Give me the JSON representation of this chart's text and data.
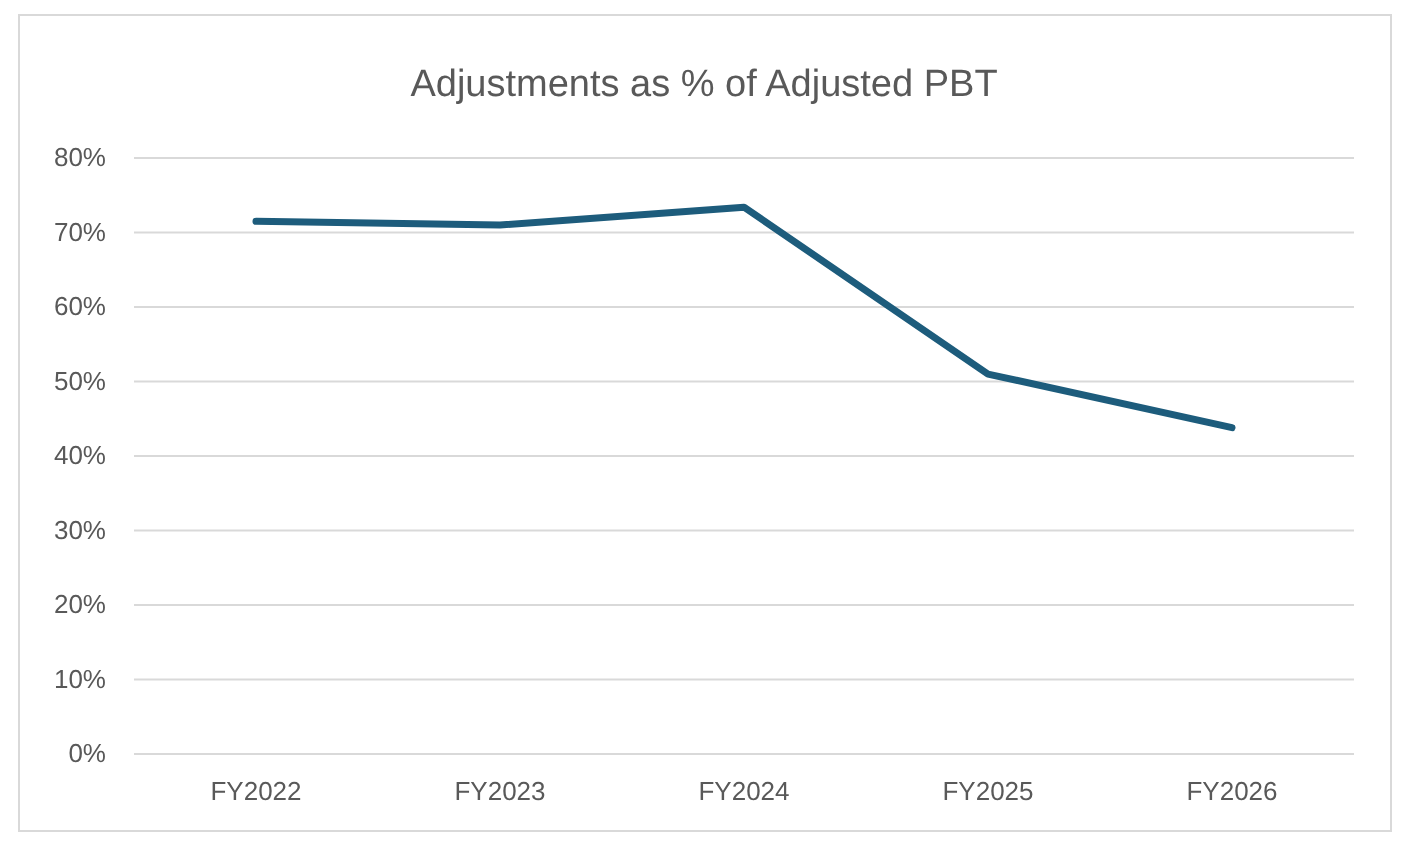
{
  "chart_data": {
    "type": "line",
    "title": "Adjustments as % of Adjusted PBT",
    "categories": [
      "FY2022",
      "FY2023",
      "FY2024",
      "FY2025",
      "FY2026"
    ],
    "series": [
      {
        "color": "#1d5c7c",
        "values": [
          71.5,
          71,
          73.4,
          51,
          43.8
        ]
      }
    ],
    "ylim": [
      0,
      80
    ],
    "yticks": [
      {
        "value": 0,
        "label": "0%"
      },
      {
        "value": 10,
        "label": "10%"
      },
      {
        "value": 20,
        "label": "20%"
      },
      {
        "value": 30,
        "label": "30%"
      },
      {
        "value": 40,
        "label": "40%"
      },
      {
        "value": 50,
        "label": "50%"
      },
      {
        "value": 60,
        "label": "60%"
      },
      {
        "value": 70,
        "label": "70%"
      },
      {
        "value": 80,
        "label": "80%"
      }
    ],
    "grid": "y",
    "marker": "none",
    "line_style": "solid"
  }
}
